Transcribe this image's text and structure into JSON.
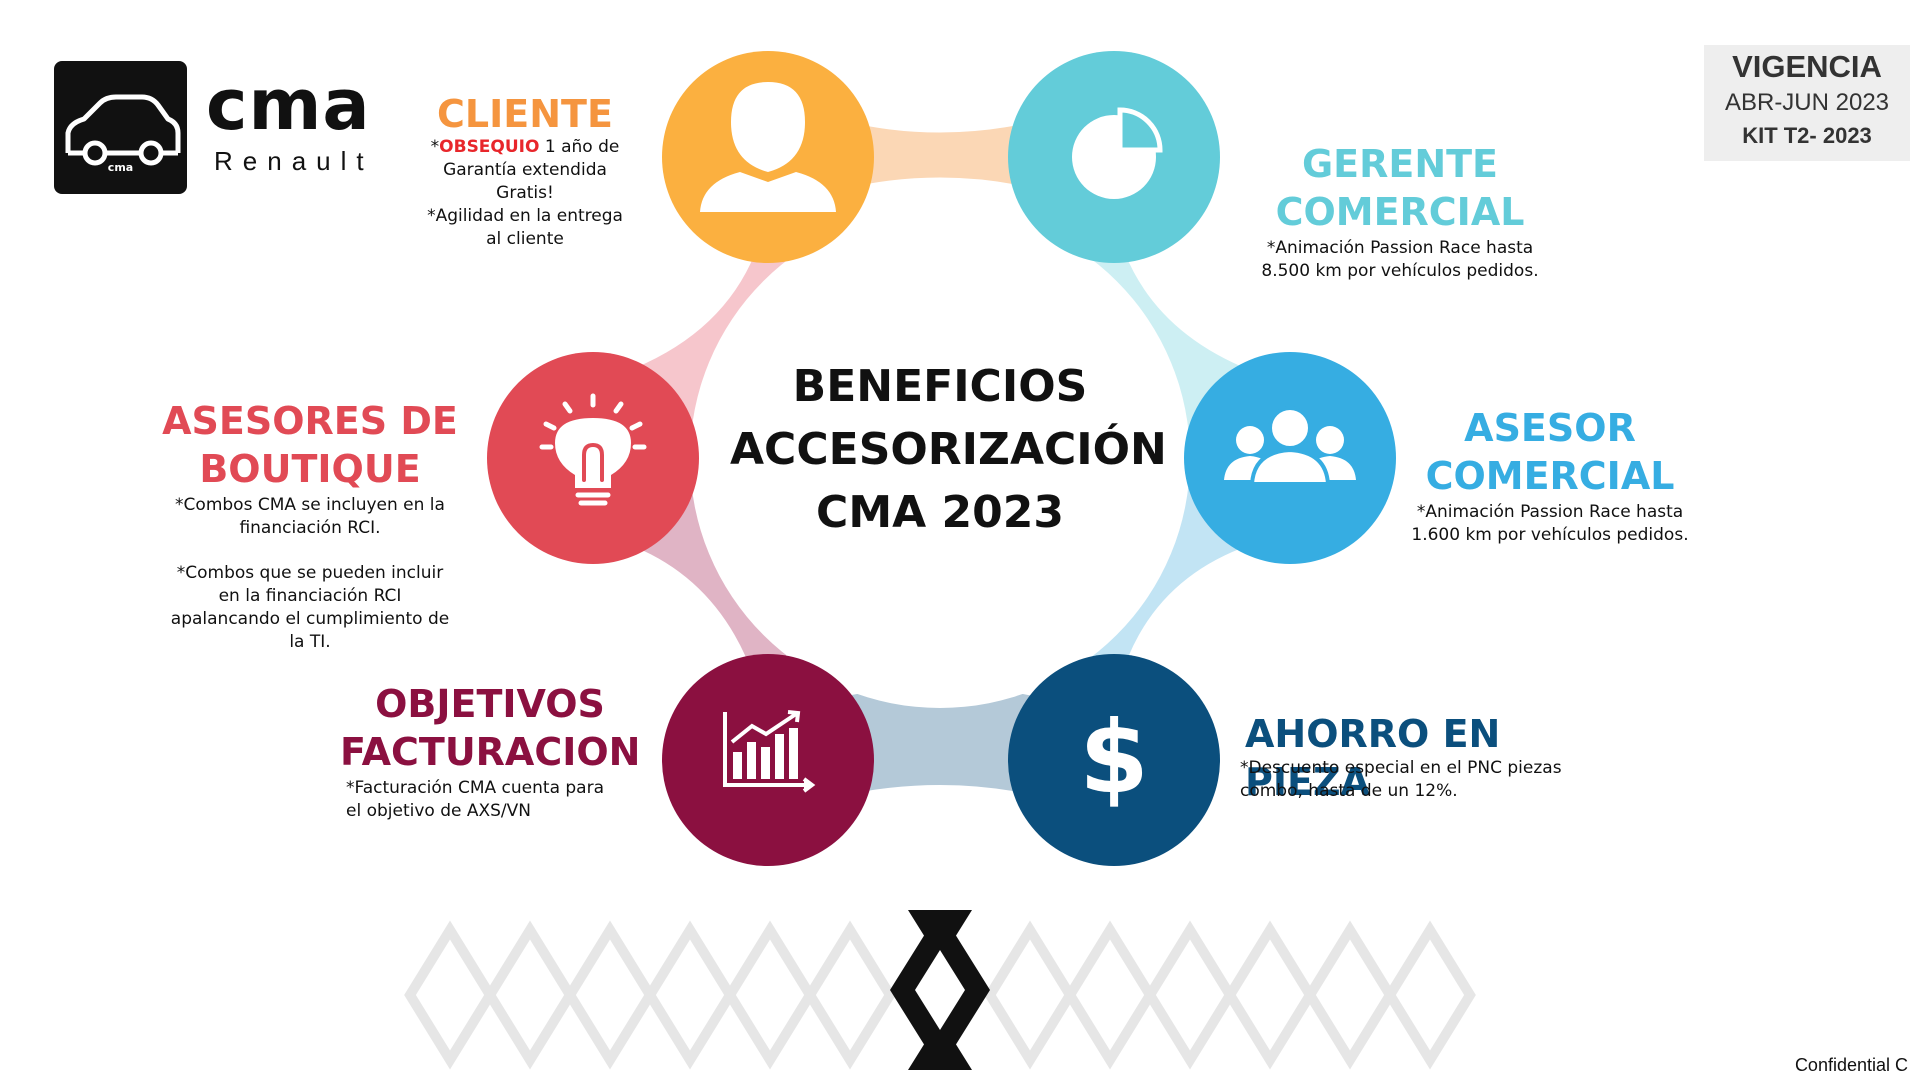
{
  "logo": {
    "brand": "cma",
    "subtitle": "Renault",
    "badge": "cma"
  },
  "vigencia": {
    "title": "VIGENCIA",
    "period": "ABR-JUN 2023",
    "kit": "KIT T2- 2023"
  },
  "center": {
    "line1": "BENEFICIOS",
    "line2": "ACCESORIZACIÓN",
    "line3": "CMA 2023"
  },
  "nodes": {
    "cliente": {
      "title": "CLIENTE",
      "star": "*",
      "highlight": "OBSEQUIO",
      "line1_rest": " 1 año de",
      "line2": "Garantía extendida",
      "line3": "Gratis!",
      "line4": "*Agilidad en la entrega",
      "line5": "al cliente",
      "color": "#fbb040"
    },
    "gerente": {
      "title1": "GERENTE",
      "title2": "COMERCIAL",
      "line1": "*Animación Passion Race hasta",
      "line2": "8.500 km por vehículos pedidos.",
      "color": "#63ccd9"
    },
    "asesor": {
      "title1": "ASESOR",
      "title2": "COMERCIAL",
      "line1": "*Animación Passion Race hasta",
      "line2": "1.600 km por vehículos pedidos.",
      "color": "#36ade2"
    },
    "ahorro": {
      "title": "AHORRO EN PIEZA",
      "line1": "*Descuento especial en el PNC piezas",
      "line2": "combo, hasta de un 12%.",
      "color": "#0b4f7d"
    },
    "objetivos": {
      "title1": "OBJETIVOS",
      "title2": "FACTURACION",
      "line1": "*Facturación CMA cuenta para",
      "line2": "el objetivo de AXS/VN",
      "color": "#8b1040"
    },
    "boutique": {
      "title1": "ASESORES DE",
      "title2": "BOUTIQUE",
      "line1": "*Combos CMA se incluyen en la",
      "line2": "financiación RCI.",
      "line3": "*Combos que se pueden incluir",
      "line4": "en la financiación RCI",
      "line5": "apalancando el cumplimiento de",
      "line6": "la TI.",
      "color": "#e14a55"
    }
  },
  "footer": {
    "confidential": "Confidential C"
  }
}
